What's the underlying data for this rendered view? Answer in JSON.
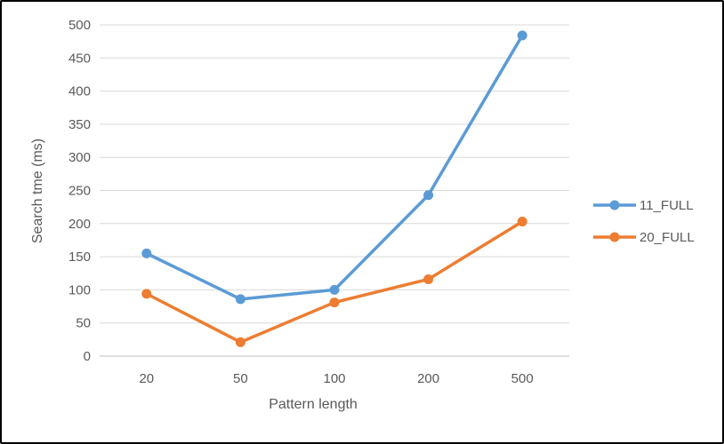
{
  "colors": {
    "background": "#FFFFFF",
    "frame_border": "#000000",
    "gridline": "#D9D9D9",
    "axis_line": "#BFBFBF",
    "text": "#595959",
    "series_blue": "#5B9BD5",
    "series_orange": "#ED7D31"
  },
  "chart_data": {
    "type": "line",
    "title": "",
    "xlabel": "Pattern length",
    "ylabel": "Search tme (ms)",
    "categories": [
      "20",
      "50",
      "100",
      "200",
      "500"
    ],
    "series": [
      {
        "name": "11_FULL",
        "color": "#5B9BD5",
        "values": [
          155,
          86,
          100,
          243,
          484
        ]
      },
      {
        "name": "20_FULL",
        "color": "#ED7D31",
        "values": [
          94,
          21,
          81,
          116,
          203
        ]
      }
    ],
    "ylim": [
      0,
      500
    ],
    "yticks": [
      0,
      50,
      100,
      150,
      200,
      250,
      300,
      350,
      400,
      450,
      500
    ],
    "grid": true,
    "legend_position": "right",
    "marker": "circle"
  }
}
